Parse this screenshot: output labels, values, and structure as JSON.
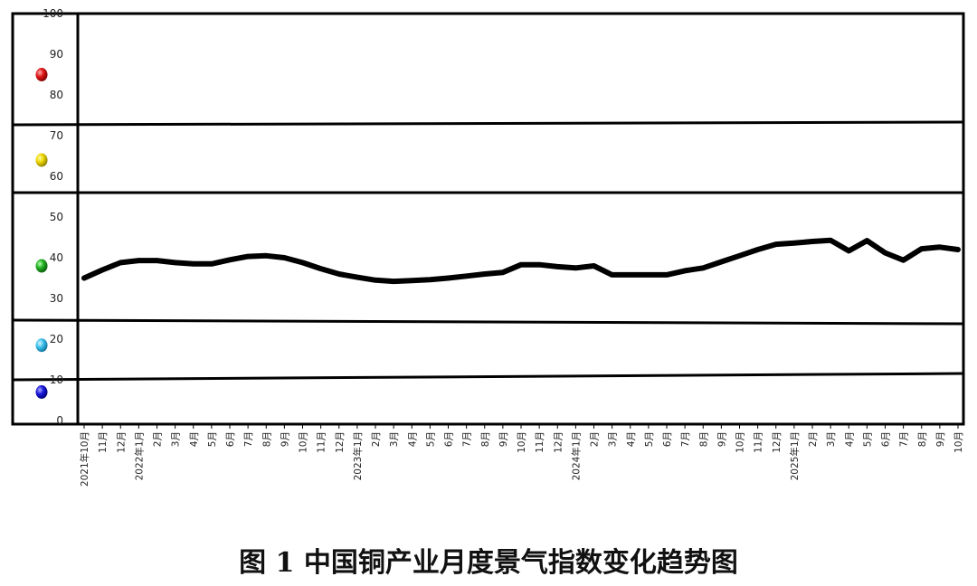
{
  "caption": "图 1  中国铜产业月度景气指数变化趋势图",
  "chart_data": {
    "type": "line",
    "title": "图 1  中国铜产业月度景气指数变化趋势图",
    "xlabel": "",
    "ylabel": "",
    "ylim": [
      0,
      100
    ],
    "y_ticks": [
      0,
      10,
      20,
      30,
      40,
      50,
      60,
      70,
      80,
      90,
      100
    ],
    "grid": false,
    "categories": [
      "2021年10月",
      "11月",
      "12月",
      "2022年1月",
      "2月",
      "3月",
      "4月",
      "5月",
      "6月",
      "7月",
      "8月",
      "9月",
      "10月",
      "11月",
      "12月",
      "2023年1月",
      "2月",
      "3月",
      "4月",
      "5月",
      "6月",
      "7月",
      "8月",
      "9月",
      "10月",
      "11月",
      "12月",
      "2024年1月",
      "2月",
      "3月",
      "4月",
      "5月",
      "6月",
      "7月",
      "8月",
      "9月",
      "10月",
      "11月",
      "12月",
      "2025年1月",
      "2月",
      "3月",
      "4月",
      "5月",
      "6月",
      "7月",
      "8月",
      "9月",
      "10月"
    ],
    "series": [
      {
        "name": "",
        "color": "#000000",
        "values": [
          35.0,
          37.0,
          38.8,
          39.3,
          39.3,
          38.8,
          38.5,
          38.5,
          39.5,
          40.3,
          40.5,
          40.0,
          38.8,
          37.3,
          36.0,
          35.2,
          34.5,
          34.2,
          34.4,
          34.6,
          35.0,
          35.5,
          36.0,
          36.4,
          38.3,
          38.3,
          37.8,
          37.5,
          38.0,
          35.8,
          35.8,
          35.8,
          35.8,
          36.8,
          37.5,
          39.0,
          40.5,
          42.0,
          43.3,
          43.6,
          44.0,
          44.3,
          41.7,
          44.2,
          41.2,
          39.4,
          42.2,
          42.6,
          42.0
        ]
      }
    ],
    "zones": [
      {
        "name": "red",
        "color": "#d91010",
        "dot_value": 85,
        "bottom": 72.5,
        "top": 100
      },
      {
        "name": "yellow",
        "color": "#e8d600",
        "dot_value": 64,
        "bottom": 55.5,
        "top": 72.5
      },
      {
        "name": "green",
        "color": "#1faa1f",
        "dot_value": 38,
        "bottom": 24.5,
        "top": 55.5
      },
      {
        "name": "light-blue",
        "color": "#35bde8",
        "dot_value": 18.5,
        "bottom": 10.5,
        "top": 24.5
      },
      {
        "name": "blue",
        "color": "#1010d8",
        "dot_value": 7,
        "bottom": 0,
        "top": 10.5
      }
    ]
  }
}
